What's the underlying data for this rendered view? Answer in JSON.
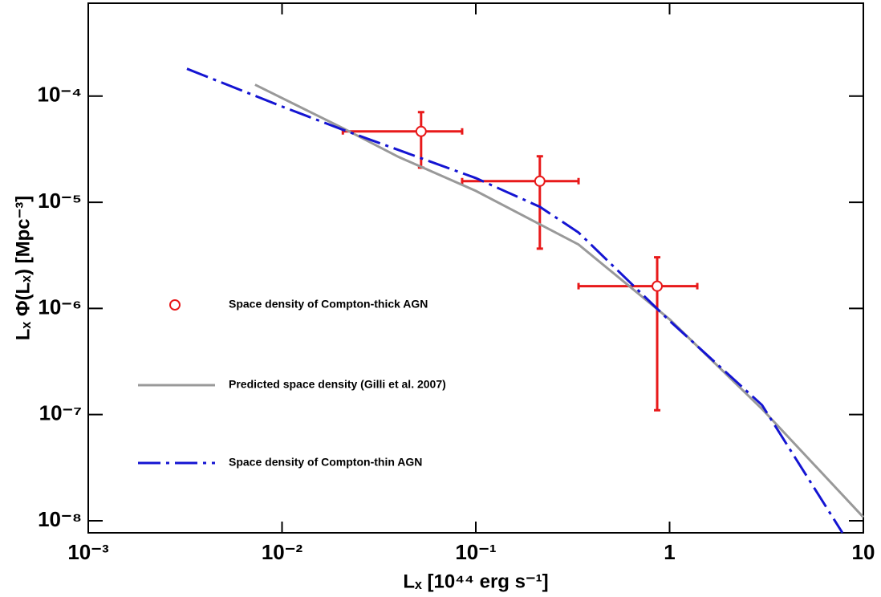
{
  "chart_data": {
    "type": "line",
    "x_label": "Lₓ [10⁴⁴ erg s⁻¹]",
    "y_label": "Lₓ Φ(Lₓ) [Mpc⁻³]",
    "x_log": true,
    "y_log": true,
    "xlim": [
      0.001,
      10
    ],
    "ylim": [
      7.7e-09,
      0.00075
    ],
    "xticks": [
      {
        "value": 0.001,
        "label": "10⁻³"
      },
      {
        "value": 0.01,
        "label": "10⁻²"
      },
      {
        "value": 0.1,
        "label": "10⁻¹"
      },
      1,
      10
    ],
    "yticks": [
      {
        "value": 1e-08,
        "label": "10⁻⁸"
      },
      {
        "value": 1e-07,
        "label": "10⁻⁷"
      },
      {
        "value": 1e-06,
        "label": "10⁻⁶"
      },
      {
        "value": 1e-05,
        "label": "10⁻⁵"
      },
      {
        "value": 0.0001,
        "label": "10⁻⁴"
      }
    ],
    "legend": "center-left",
    "series": [
      {
        "name": "Space density of Compton-thick AGN",
        "type": "scatter",
        "color": "#e8191a",
        "x": [
          0.0522,
          0.214,
          0.863
        ],
        "values": [
          4.65e-05,
          1.58e-05,
          1.62e-06
        ],
        "x_low": [
          0.0206,
          0.085,
          0.339
        ],
        "x_high": [
          0.085,
          0.339,
          1.39
        ],
        "y_low": [
          2.12e-05,
          3.66e-06,
          1.1e-07
        ],
        "y_high": [
          7.06e-05,
          2.71e-05,
          3.03e-06
        ]
      },
      {
        "name": "Predicted space density (Gilli et al. 2007)",
        "type": "line",
        "color": "#999999",
        "x": [
          0.00726,
          0.0206,
          0.04,
          0.1,
          0.339,
          1,
          3.0,
          10
        ],
        "values": [
          0.000128,
          4.99e-05,
          2.67e-05,
          1.28e-05,
          4e-06,
          7.9e-07,
          1.13e-07,
          1.08e-08
        ]
      },
      {
        "name": "Space density of Compton-thin AGN",
        "type": "line",
        "line_style": "dashed",
        "color": "#1414d2",
        "x": [
          0.00323,
          0.01,
          0.0206,
          0.1,
          0.214,
          0.339,
          1,
          3.0,
          7.8
        ],
        "values": [
          0.000181,
          7.98e-05,
          4.82e-05,
          1.69e-05,
          9.06e-06,
          5.19e-06,
          7.65e-07,
          1.23e-07,
          7.7e-09
        ]
      }
    ]
  }
}
